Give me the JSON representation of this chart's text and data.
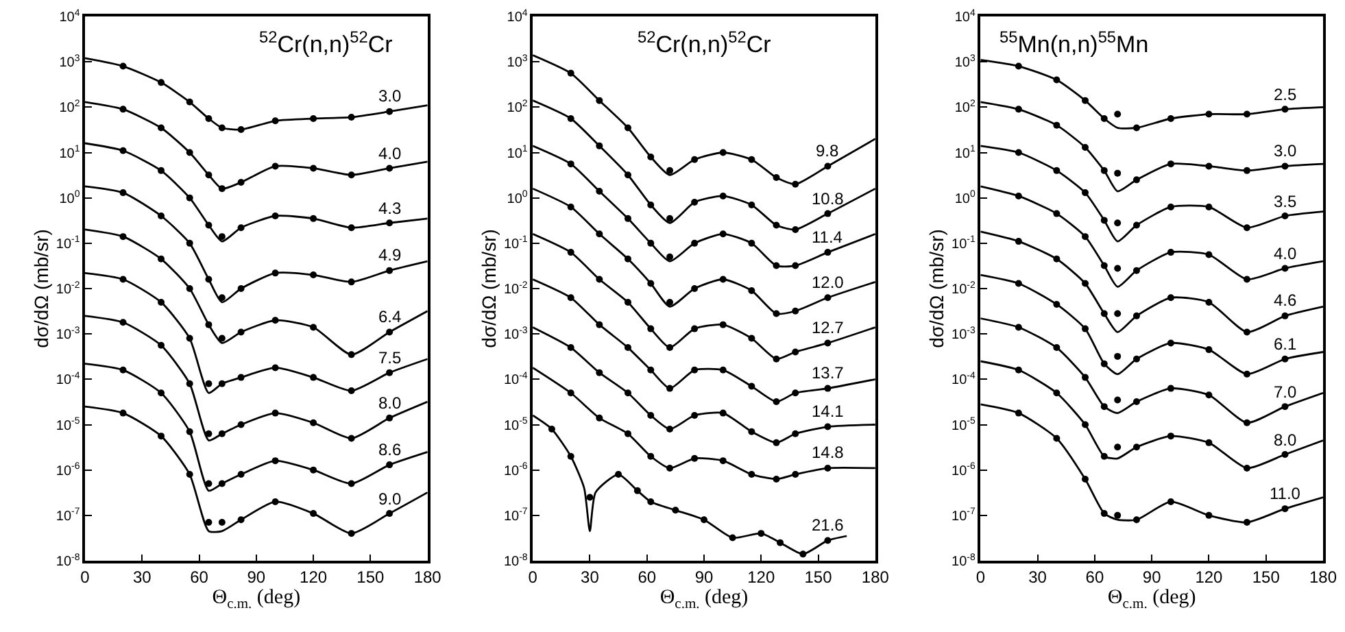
{
  "chart_data": [
    {
      "type": "line",
      "title": "$^{52}$Cr(n,n)$^{52}$Cr",
      "xlabel": "Θ$_{c.m.}$ (deg)",
      "ylabel": "dσ/dΩ (mb/sr)",
      "log": "y",
      "xlim": [
        0,
        180
      ],
      "xticks": [
        0,
        30,
        60,
        90,
        120,
        150,
        180
      ],
      "ylim": [
        1e-08,
        10000.0
      ],
      "yticks": [
        {
          "value": 1e-08,
          "label": "10$^{-8}$"
        },
        {
          "value": 1e-07,
          "label": "10$^{-7}$"
        },
        {
          "value": 1e-06,
          "label": "10$^{-6}$"
        },
        {
          "value": 1e-05,
          "label": "10$^{-5}$"
        },
        {
          "value": 0.0001,
          "label": "10$^{-4}$"
        },
        {
          "value": 0.001,
          "label": "10$^{-3}$"
        },
        {
          "value": 0.01,
          "label": "10$^{-2}$"
        },
        {
          "value": 0.1,
          "label": "10$^{-1}$"
        },
        {
          "value": 1,
          "label": "10$^{0}$"
        },
        {
          "value": 10,
          "label": "10$^{1}$"
        },
        {
          "value": 100,
          "label": "10$^{2}$"
        },
        {
          "value": 1000,
          "label": "10$^{3}$"
        },
        {
          "value": 10000,
          "label": "10$^{4}$"
        }
      ],
      "x": [
        0,
        20,
        40,
        55,
        65,
        72,
        82,
        100,
        120,
        140,
        160,
        180
      ],
      "series": [
        {
          "name": "3.0",
          "color": "#000000",
          "values": [
            1200.0,
            800.0,
            350.0,
            130.0,
            56.0,
            35.0,
            32.0,
            50.0,
            56.0,
            60.0,
            80.0,
            110.0
          ]
        },
        {
          "name": "4.0",
          "color": "#000000",
          "values": [
            130.0,
            90.0,
            35.0,
            10.0,
            3.2,
            1.6,
            2.2,
            5,
            4.5,
            3.2,
            4.5,
            6.3
          ]
        },
        {
          "name": "4.3",
          "color": "#000000",
          "values": [
            16.0,
            11.0,
            4,
            1,
            0.25,
            0.11,
            0.22,
            0.4,
            0.35,
            0.22,
            0.28,
            0.35
          ]
        },
        {
          "name": "4.9",
          "color": "#000000",
          "values": [
            1.8,
            1.3,
            0.4,
            0.1,
            0.016,
            0.005,
            0.01,
            0.022,
            0.02,
            0.014,
            0.025,
            0.04
          ]
        },
        {
          "name": "6.4",
          "color": "#000000",
          "values": [
            0.2,
            0.14,
            0.045,
            0.01,
            0.0016,
            0.00063,
            0.0011,
            0.002,
            0.0014,
            0.00035,
            0.0011,
            0.0032
          ]
        },
        {
          "name": "7.5",
          "color": "#000000",
          "values": [
            0.022,
            0.016,
            0.005,
            0.0008,
            5e-05,
            8e-05,
            0.00011,
            0.00018,
            0.00011,
            5.6e-05,
            0.00014,
            0.00028
          ]
        },
        {
          "name": "8.0",
          "color": "#000000",
          "values": [
            0.0025,
            0.0018,
            0.00056,
            8e-05,
            4.5e-06,
            6.3e-06,
            1e-05,
            1.8e-05,
            1.1e-05,
            5e-06,
            1.4e-05,
            3.2e-05
          ]
        },
        {
          "name": "8.6",
          "color": "#000000",
          "values": [
            0.00022,
            0.00016,
            5e-05,
            7e-06,
            3.5e-07,
            5e-07,
            8e-07,
            1.6e-06,
            1e-06,
            5e-07,
            1.3e-06,
            2.5e-06
          ]
        },
        {
          "name": "9.0",
          "color": "#000000",
          "values": [
            2.5e-05,
            1.8e-05,
            5.6e-06,
            8e-07,
            4.5e-08,
            4.5e-08,
            8e-08,
            2e-07,
            1.1e-07,
            4e-08,
            1.1e-07,
            3.2e-07
          ]
        },
        {
          "type": "scatter",
          "color": "#000000",
          "x": [
            20,
            40,
            55,
            65,
            72,
            82,
            100,
            120,
            140,
            160
          ],
          "values": [
            800.0,
            350.0,
            130.0,
            56.0,
            35.0,
            32.0,
            50.0,
            56.0,
            60.0,
            80.0
          ]
        },
        {
          "type": "scatter",
          "color": "#000000",
          "x": [
            20,
            40,
            55,
            65,
            72,
            82,
            100,
            120,
            140,
            160
          ],
          "values": [
            90.0,
            35.0,
            10.0,
            3.2,
            1.6,
            2.2,
            5,
            4.5,
            3.2,
            4.5
          ]
        },
        {
          "type": "scatter",
          "color": "#000000",
          "x": [
            20,
            40,
            55,
            65,
            72,
            82,
            100,
            120,
            140,
            160
          ],
          "values": [
            11.0,
            4,
            1,
            0.25,
            0.14,
            0.22,
            0.4,
            0.35,
            0.22,
            0.28
          ]
        },
        {
          "type": "scatter",
          "color": "#000000",
          "x": [
            20,
            40,
            55,
            65,
            72,
            82,
            100,
            120,
            140,
            160
          ],
          "values": [
            1.3,
            0.4,
            0.1,
            0.016,
            0.0063,
            0.01,
            0.022,
            0.02,
            0.014,
            0.025
          ]
        },
        {
          "type": "scatter",
          "color": "#000000",
          "x": [
            20,
            40,
            55,
            65,
            72,
            82,
            100,
            120,
            140,
            160
          ],
          "values": [
            0.14,
            0.045,
            0.01,
            0.0016,
            0.0008,
            0.0011,
            0.002,
            0.0014,
            0.00035,
            0.0011
          ]
        },
        {
          "type": "scatter",
          "color": "#000000",
          "x": [
            20,
            40,
            55,
            65,
            72,
            82,
            100,
            120,
            140,
            160
          ],
          "values": [
            0.016,
            0.005,
            0.0008,
            8e-05,
            8e-05,
            0.00011,
            0.00018,
            0.00011,
            5.6e-05,
            0.00014
          ]
        },
        {
          "type": "scatter",
          "color": "#000000",
          "x": [
            20,
            40,
            55,
            65,
            72,
            82,
            100,
            120,
            140,
            160
          ],
          "values": [
            0.0018,
            0.00056,
            8e-05,
            6.3e-06,
            6.3e-06,
            1e-05,
            1.8e-05,
            1.1e-05,
            5e-06,
            1.4e-05
          ]
        },
        {
          "type": "scatter",
          "color": "#000000",
          "x": [
            20,
            40,
            55,
            65,
            72,
            82,
            100,
            120,
            140,
            160
          ],
          "values": [
            0.00016,
            5e-05,
            7e-06,
            5e-07,
            5e-07,
            8e-07,
            1.6e-06,
            1e-06,
            5e-07,
            1.3e-06
          ]
        },
        {
          "type": "scatter",
          "color": "#000000",
          "x": [
            20,
            40,
            55,
            65,
            72,
            82,
            100,
            120,
            140,
            160
          ],
          "values": [
            1.8e-05,
            5.6e-06,
            8e-07,
            7e-08,
            7e-08,
            8e-08,
            2e-07,
            1.1e-07,
            4e-08,
            1.1e-07
          ]
        }
      ]
    },
    {
      "type": "line",
      "title": "$^{52}$Cr(n,n)$^{52}$Cr",
      "xlabel": "Θ$_{c.m.}$ (deg)",
      "ylabel": "dσ/dΩ (mb/sr)",
      "log": "y",
      "xlim": [
        0,
        180
      ],
      "xticks": [
        0,
        30,
        60,
        90,
        120,
        150,
        180
      ],
      "ylim": [
        1e-08,
        10000.0
      ],
      "yticks": [
        {
          "value": 1e-08,
          "label": "10$^{-8}$"
        },
        {
          "value": 1e-07,
          "label": "10$^{-7}$"
        },
        {
          "value": 1e-06,
          "label": "10$^{-6}$"
        },
        {
          "value": 1e-05,
          "label": "10$^{-5}$"
        },
        {
          "value": 0.0001,
          "label": "10$^{-4}$"
        },
        {
          "value": 0.001,
          "label": "10$^{-3}$"
        },
        {
          "value": 0.01,
          "label": "10$^{-2}$"
        },
        {
          "value": 0.1,
          "label": "10$^{-1}$"
        },
        {
          "value": 1,
          "label": "10$^{0}$"
        },
        {
          "value": 10,
          "label": "10$^{1}$"
        },
        {
          "value": 100,
          "label": "10$^{2}$"
        },
        {
          "value": 1000,
          "label": "10$^{3}$"
        },
        {
          "value": 10000,
          "label": "10$^{4}$"
        }
      ],
      "x": [
        0,
        20,
        35,
        50,
        62,
        72,
        85,
        100,
        115,
        128,
        138,
        155,
        180
      ],
      "series": [
        {
          "name": "9.8",
          "color": "#000000",
          "values": [
            1400.0,
            560.0,
            140.0,
            35.0,
            8,
            3.2,
            7,
            10.0,
            7,
            2.8,
            2,
            5,
            20.0
          ]
        },
        {
          "name": "10.8",
          "color": "#000000",
          "values": [
            140.0,
            56.0,
            14.0,
            3.2,
            0.7,
            0.28,
            0.8,
            1.1,
            0.7,
            0.25,
            0.2,
            0.45,
            1.6
          ]
        },
        {
          "name": "11.4",
          "color": "#000000",
          "values": [
            14.0,
            5.6,
            1.4,
            0.35,
            0.1,
            0.04,
            0.1,
            0.16,
            0.1,
            0.032,
            0.032,
            0.063,
            0.16
          ]
        },
        {
          "name": "12.0",
          "color": "#000000",
          "values": [
            1.6,
            0.63,
            0.16,
            0.045,
            0.013,
            0.004,
            0.01,
            0.016,
            0.009,
            0.0028,
            0.0032,
            0.0063,
            0.014
          ]
        },
        {
          "name": "12.7",
          "color": "#000000",
          "values": [
            0.16,
            0.063,
            0.016,
            0.005,
            0.0013,
            0.0005,
            0.0013,
            0.0016,
            0.0008,
            0.00028,
            0.0004,
            0.00063,
            0.0014
          ]
        },
        {
          "name": "13.7",
          "color": "#000000",
          "values": [
            0.016,
            0.0063,
            0.0016,
            0.0005,
            0.00016,
            6.3e-05,
            0.00016,
            0.00016,
            7e-05,
            3.2e-05,
            5e-05,
            6.3e-05,
            0.0001
          ]
        },
        {
          "name": "14.1",
          "color": "#000000",
          "values": [
            0.0014,
            0.0005,
            0.00014,
            5e-05,
            1.6e-05,
            8e-06,
            1.6e-05,
            1.8e-05,
            7e-06,
            4e-06,
            6.3e-06,
            9e-06,
            1e-05
          ]
        },
        {
          "name": "14.8",
          "color": "#000000",
          "values": [
            0.00018,
            5e-05,
            1.4e-05,
            6.3e-06,
            2e-06,
            1.1e-06,
            1.8e-06,
            1.6e-06,
            8e-07,
            6.3e-07,
            8e-07,
            1.1e-06,
            1.1e-06
          ]
        },
        {
          "name": "21.6",
          "color": "#000000",
          "x": [
            0,
            10,
            20,
            27,
            30,
            33,
            45,
            55,
            62,
            75,
            90,
            105,
            120,
            130,
            142,
            155,
            165
          ],
          "values": [
            1.6e-05,
            8e-06,
            2e-06,
            4e-07,
            4.5e-08,
            3.2e-07,
            8e-07,
            3.5e-07,
            2e-07,
            1.3e-07,
            8e-08,
            3.2e-08,
            4e-08,
            2.5e-08,
            1.4e-08,
            2.8e-08,
            3.5e-08
          ]
        },
        {
          "type": "scatter",
          "color": "#000000",
          "x": [
            20,
            35,
            50,
            62,
            72,
            85,
            100,
            115,
            128,
            138,
            155
          ],
          "values": [
            560.0,
            140.0,
            35.0,
            8,
            4,
            7,
            10.0,
            7,
            2.8,
            2,
            5
          ]
        },
        {
          "type": "scatter",
          "color": "#000000",
          "x": [
            20,
            35,
            50,
            62,
            72,
            85,
            100,
            115,
            128,
            138,
            155
          ],
          "values": [
            56.0,
            14.0,
            3.2,
            0.7,
            0.35,
            0.8,
            1.1,
            0.7,
            0.25,
            0.2,
            0.45
          ]
        },
        {
          "type": "scatter",
          "color": "#000000",
          "x": [
            20,
            35,
            50,
            62,
            72,
            85,
            100,
            115,
            128,
            138,
            155
          ],
          "values": [
            5.6,
            1.4,
            0.35,
            0.1,
            0.05,
            0.1,
            0.16,
            0.1,
            0.032,
            0.032,
            0.063
          ]
        },
        {
          "type": "scatter",
          "color": "#000000",
          "x": [
            20,
            35,
            50,
            62,
            72,
            85,
            100,
            115,
            128,
            138,
            155
          ],
          "values": [
            0.63,
            0.16,
            0.045,
            0.013,
            0.005,
            0.01,
            0.016,
            0.009,
            0.0028,
            0.0032,
            0.0063
          ]
        },
        {
          "type": "scatter",
          "color": "#000000",
          "x": [
            20,
            35,
            50,
            62,
            72,
            85,
            100,
            115,
            128,
            138,
            155
          ],
          "values": [
            0.063,
            0.016,
            0.005,
            0.0013,
            0.0005,
            0.0013,
            0.0016,
            0.0008,
            0.00028,
            0.0004,
            0.00063
          ]
        },
        {
          "type": "scatter",
          "color": "#000000",
          "x": [
            20,
            35,
            50,
            62,
            72,
            85,
            100,
            115,
            128,
            138,
            155
          ],
          "values": [
            0.0063,
            0.0016,
            0.0005,
            0.00016,
            6.3e-05,
            0.00016,
            0.00016,
            7e-05,
            3.2e-05,
            5e-05,
            6.3e-05
          ]
        },
        {
          "type": "scatter",
          "color": "#000000",
          "x": [
            20,
            35,
            50,
            62,
            72,
            85,
            100,
            115,
            128,
            138,
            155
          ],
          "values": [
            0.0005,
            0.00014,
            5e-05,
            1.6e-05,
            8e-06,
            1.6e-05,
            1.8e-05,
            7e-06,
            4e-06,
            6.3e-06,
            9e-06
          ]
        },
        {
          "type": "scatter",
          "color": "#000000",
          "x": [
            20,
            35,
            50,
            62,
            72,
            85,
            100,
            115,
            128,
            138,
            155
          ],
          "values": [
            5e-05,
            1.4e-05,
            6.3e-06,
            2e-06,
            1.1e-06,
            1.8e-06,
            1.6e-06,
            8e-07,
            6.3e-07,
            8e-07,
            1.1e-06
          ]
        },
        {
          "type": "scatter",
          "color": "#000000",
          "x": [
            10,
            20,
            30,
            45,
            55,
            62,
            75,
            90,
            105,
            120,
            130,
            142,
            155
          ],
          "values": [
            8e-06,
            2e-06,
            2.5e-07,
            8e-07,
            3.5e-07,
            2e-07,
            1.3e-07,
            8e-08,
            3.2e-08,
            4e-08,
            2.5e-08,
            1.4e-08,
            2.8e-08
          ]
        }
      ]
    },
    {
      "type": "line",
      "title": "$^{55}$Mn(n,n)$^{55}$Mn",
      "xlabel": "Θ$_{c.m.}$ (deg)",
      "ylabel": "dσ/dΩ (mb/sr)",
      "log": "y",
      "xlim": [
        0,
        180
      ],
      "xticks": [
        0,
        30,
        60,
        90,
        120,
        150,
        180
      ],
      "ylim": [
        1e-08,
        10000.0
      ],
      "yticks": [
        {
          "value": 1e-08,
          "label": "10$^{-8}$"
        },
        {
          "value": 1e-07,
          "label": "10$^{-7}$"
        },
        {
          "value": 1e-06,
          "label": "10$^{-6}$"
        },
        {
          "value": 1e-05,
          "label": "10$^{-5}$"
        },
        {
          "value": 0.0001,
          "label": "10$^{-4}$"
        },
        {
          "value": 0.001,
          "label": "10$^{-3}$"
        },
        {
          "value": 0.01,
          "label": "10$^{-2}$"
        },
        {
          "value": 0.1,
          "label": "10$^{-1}$"
        },
        {
          "value": 1,
          "label": "10$^{0}$"
        },
        {
          "value": 10,
          "label": "10$^{1}$"
        },
        {
          "value": 100,
          "label": "10$^{2}$"
        },
        {
          "value": 1000,
          "label": "10$^{3}$"
        },
        {
          "value": 10000,
          "label": "10$^{4}$"
        }
      ],
      "x": [
        0,
        20,
        40,
        55,
        65,
        72,
        82,
        100,
        120,
        140,
        160,
        180
      ],
      "series": [
        {
          "name": "2.5",
          "color": "#000000",
          "values": [
            1100.0,
            800.0,
            400.0,
            140.0,
            56.0,
            35.0,
            35.0,
            56.0,
            70.0,
            70.0,
            90.0,
            100.0
          ]
        },
        {
          "name": "3.0",
          "color": "#000000",
          "values": [
            130.0,
            90.0,
            40.0,
            13.0,
            4,
            1.4,
            2.5,
            5.6,
            5,
            4,
            5,
            5.6
          ]
        },
        {
          "name": "3.5",
          "color": "#000000",
          "values": [
            14.0,
            10.0,
            4,
            1.3,
            0.32,
            0.11,
            0.25,
            0.63,
            0.63,
            0.22,
            0.4,
            0.5
          ]
        },
        {
          "name": "4.0",
          "color": "#000000",
          "values": [
            1.8,
            1.1,
            0.45,
            0.14,
            0.032,
            0.011,
            0.025,
            0.063,
            0.056,
            0.016,
            0.028,
            0.04
          ]
        },
        {
          "name": "4.6",
          "color": "#000000",
          "values": [
            0.18,
            0.11,
            0.045,
            0.013,
            0.0028,
            0.0011,
            0.0025,
            0.0063,
            0.005,
            0.0011,
            0.0025,
            0.004
          ]
        },
        {
          "name": "6.1",
          "color": "#000000",
          "values": [
            0.02,
            0.013,
            0.0045,
            0.0013,
            0.00022,
            0.00013,
            0.00028,
            0.00063,
            0.00045,
            0.00013,
            0.00028,
            0.0004
          ]
        },
        {
          "name": "7.0",
          "color": "#000000",
          "values": [
            0.0022,
            0.0014,
            0.0005,
            0.00011,
            2.5e-05,
            1.8e-05,
            3.2e-05,
            6.3e-05,
            4.5e-05,
            1.1e-05,
            2.5e-05,
            5e-05
          ]
        },
        {
          "name": "8.0",
          "color": "#000000",
          "values": [
            0.00025,
            0.00016,
            5e-05,
            1e-05,
            2e-06,
            1.8e-06,
            3.2e-06,
            5.6e-06,
            4e-06,
            1.1e-06,
            2.2e-06,
            4.5e-06
          ]
        },
        {
          "name": "11.0",
          "color": "#000000",
          "values": [
            2.8e-05,
            1.8e-05,
            5e-06,
            6.3e-07,
            1.1e-07,
            8e-08,
            8e-08,
            2e-07,
            1e-07,
            7e-08,
            1.4e-07,
            2.5e-07
          ]
        },
        {
          "type": "scatter",
          "color": "#000000",
          "x": [
            20,
            40,
            55,
            65,
            72,
            82,
            100,
            120,
            140,
            160
          ],
          "values": [
            800.0,
            400.0,
            140.0,
            56.0,
            70.0,
            35.0,
            56.0,
            70.0,
            70.0,
            90.0
          ]
        },
        {
          "type": "scatter",
          "color": "#000000",
          "x": [
            20,
            40,
            55,
            65,
            72,
            82,
            100,
            120,
            140,
            160
          ],
          "values": [
            90.0,
            40.0,
            13.0,
            4,
            3.5,
            2.5,
            5.6,
            5,
            4,
            5
          ]
        },
        {
          "type": "scatter",
          "color": "#000000",
          "x": [
            20,
            40,
            55,
            65,
            72,
            82,
            100,
            120,
            140,
            160
          ],
          "values": [
            10.0,
            4,
            1.3,
            0.32,
            0.28,
            0.25,
            0.63,
            0.63,
            0.22,
            0.4
          ]
        },
        {
          "type": "scatter",
          "color": "#000000",
          "x": [
            20,
            40,
            55,
            65,
            72,
            82,
            100,
            120,
            140,
            160
          ],
          "values": [
            1.1,
            0.45,
            0.14,
            0.032,
            0.028,
            0.025,
            0.063,
            0.056,
            0.016,
            0.028
          ]
        },
        {
          "type": "scatter",
          "color": "#000000",
          "x": [
            20,
            40,
            55,
            65,
            72,
            82,
            100,
            120,
            140,
            160
          ],
          "values": [
            0.11,
            0.045,
            0.013,
            0.0028,
            0.0028,
            0.0025,
            0.0063,
            0.005,
            0.0011,
            0.0025
          ]
        },
        {
          "type": "scatter",
          "color": "#000000",
          "x": [
            20,
            40,
            55,
            65,
            72,
            82,
            100,
            120,
            140,
            160
          ],
          "values": [
            0.013,
            0.0045,
            0.0013,
            0.00022,
            0.00032,
            0.00028,
            0.00063,
            0.00045,
            0.00013,
            0.00028
          ]
        },
        {
          "type": "scatter",
          "color": "#000000",
          "x": [
            20,
            40,
            55,
            65,
            72,
            82,
            100,
            120,
            140,
            160
          ],
          "values": [
            0.0014,
            0.0005,
            0.00011,
            2.5e-05,
            3.5e-05,
            3.2e-05,
            6.3e-05,
            4.5e-05,
            1.1e-05,
            2.5e-05
          ]
        },
        {
          "type": "scatter",
          "color": "#000000",
          "x": [
            20,
            40,
            55,
            65,
            72,
            82,
            100,
            120,
            140,
            160
          ],
          "values": [
            0.00016,
            5e-05,
            1e-05,
            2e-06,
            3.2e-06,
            3.2e-06,
            5.6e-06,
            4e-06,
            1.1e-06,
            2.2e-06
          ]
        },
        {
          "type": "scatter",
          "color": "#000000",
          "x": [
            20,
            40,
            55,
            65,
            72,
            82,
            100,
            120,
            140,
            160
          ],
          "values": [
            1.8e-05,
            5e-06,
            6.3e-07,
            1.1e-07,
            1e-07,
            8e-08,
            2e-07,
            1e-07,
            7e-08,
            1.4e-07
          ]
        }
      ]
    }
  ]
}
